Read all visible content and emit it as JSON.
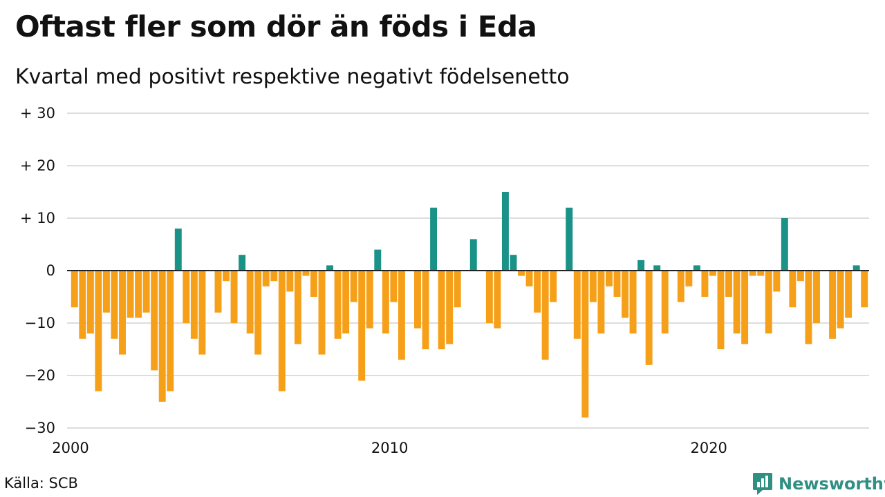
{
  "chart_data": {
    "type": "bar",
    "title": "Oftast fler som dör än föds i Eda",
    "subtitle": "Kvartal med positivt respektive negativt födelsenetto",
    "xlabel": "",
    "ylabel": "",
    "x_start": "2000-Q1",
    "x_end": "2024-Q4",
    "x_ticks": [
      "2000",
      "2010",
      "2020"
    ],
    "y_ticks": [
      "+ 30",
      "+ 20",
      "+ 10",
      "0",
      "−10",
      "−20",
      "−30"
    ],
    "ylim": [
      -30,
      30
    ],
    "grid": true,
    "colors": {
      "positive": "#1a9287",
      "negative": "#f6a01a"
    },
    "series": [
      {
        "values": [
          -7,
          -13,
          -12,
          -23,
          -8,
          -13,
          -16,
          -9,
          -9,
          -8,
          -19,
          -25,
          -23,
          8,
          -10,
          -13,
          -16,
          0,
          -8,
          -2,
          -10,
          3,
          -12,
          -16,
          -3,
          -2,
          -23,
          -4,
          -14,
          -1,
          -5,
          -16,
          1,
          -13,
          -12,
          -6,
          -21,
          -11,
          4,
          -12,
          -6,
          -17,
          0,
          -11,
          -15,
          12,
          -15,
          -14,
          -7,
          0,
          6,
          0,
          -10,
          -11,
          15,
          3,
          -1,
          -3,
          -8,
          -17,
          -6,
          0,
          12,
          -13,
          -28,
          -6,
          -12,
          -3,
          -5,
          -9,
          -12,
          2,
          -18,
          1,
          -12,
          0,
          -6,
          -3,
          1,
          -5,
          -1,
          -15,
          -5,
          -12,
          -14,
          -1,
          -1,
          -12,
          -4,
          10,
          -7,
          -2,
          -14,
          -10,
          0,
          -13,
          -11,
          -9,
          1,
          -7
        ]
      }
    ]
  },
  "footer": {
    "source": "Källa: SCB",
    "brand": "Newsworthy",
    "brand_icon": "newsworthy-logo-icon"
  }
}
